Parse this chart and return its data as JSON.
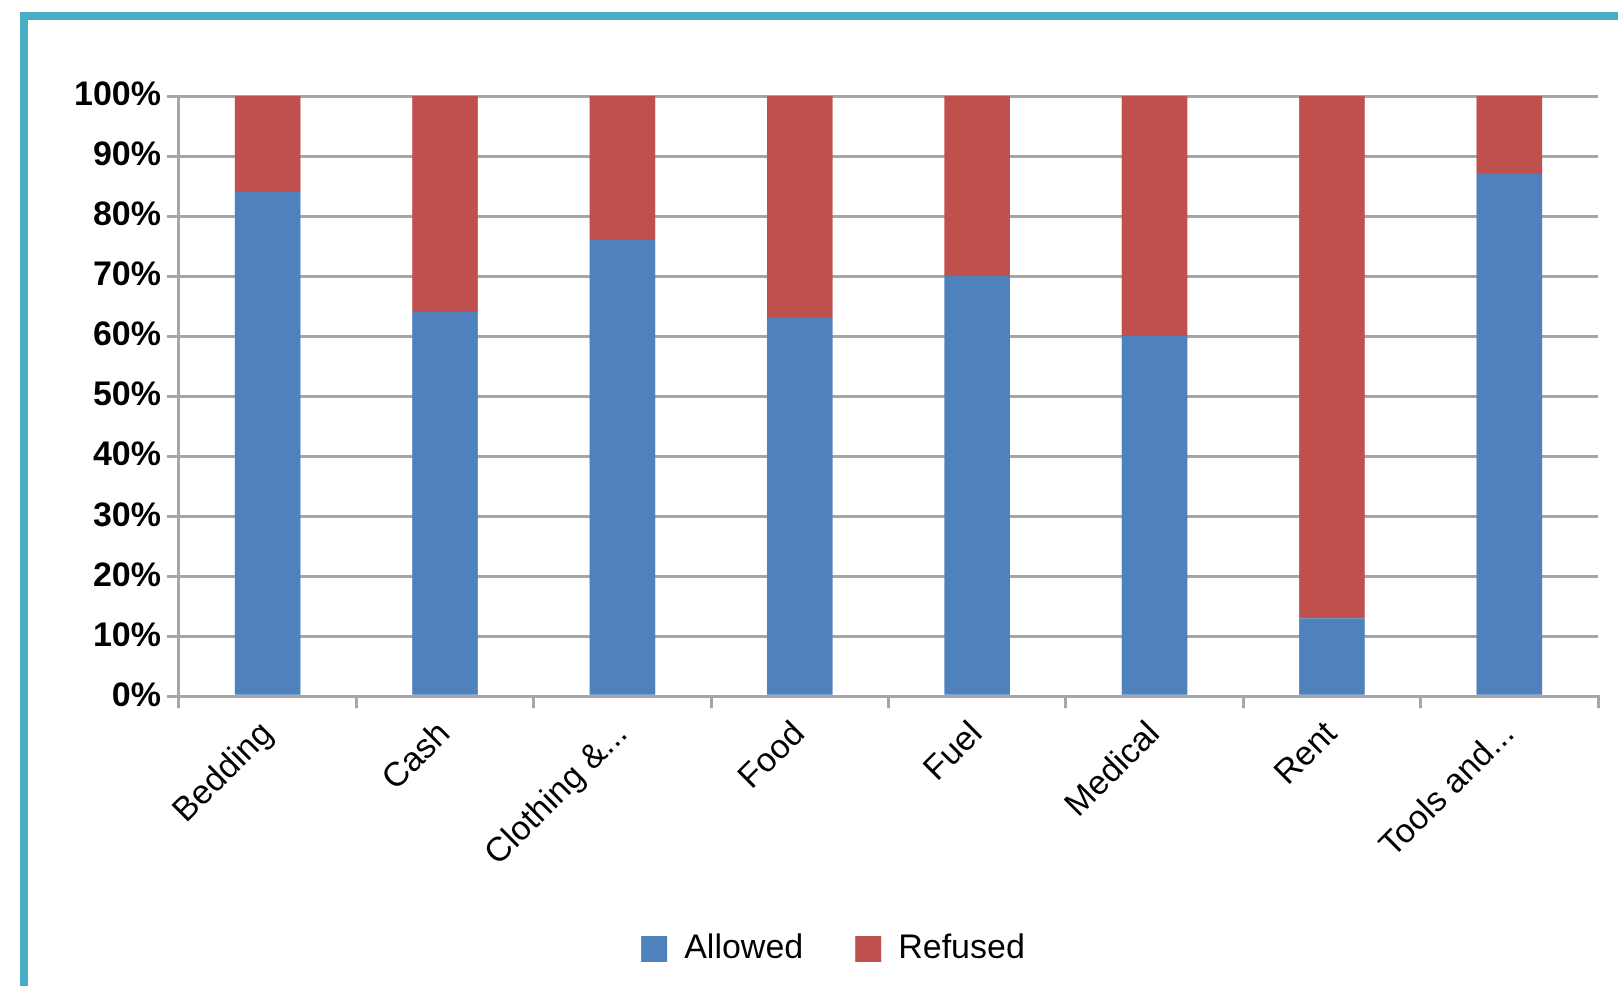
{
  "chart_data": {
    "type": "bar",
    "stacked": true,
    "categories": [
      "Bedding",
      "Cash",
      "Clothing &...",
      "Food",
      "Fuel",
      "Medical",
      "Rent",
      "Tools and..."
    ],
    "series": [
      {
        "name": "Allowed",
        "color": "#4f81bd",
        "values": [
          84,
          64,
          76,
          63,
          70,
          60,
          13,
          87
        ]
      },
      {
        "name": "Refused",
        "color": "#c0504d",
        "values": [
          16,
          36,
          24,
          37,
          30,
          40,
          87,
          13
        ]
      }
    ],
    "ylim": [
      0,
      100
    ],
    "yticks": [
      {
        "value": 0,
        "label": "0%"
      },
      {
        "value": 10,
        "label": "10%"
      },
      {
        "value": 20,
        "label": "20%"
      },
      {
        "value": 30,
        "label": "30%"
      },
      {
        "value": 40,
        "label": "40%"
      },
      {
        "value": 50,
        "label": "50%"
      },
      {
        "value": 60,
        "label": "60%"
      },
      {
        "value": 70,
        "label": "70%"
      },
      {
        "value": 80,
        "label": "80%"
      },
      {
        "value": 90,
        "label": "90%"
      },
      {
        "value": 100,
        "label": "100%"
      }
    ],
    "grid": "y",
    "legend": "bottom"
  }
}
